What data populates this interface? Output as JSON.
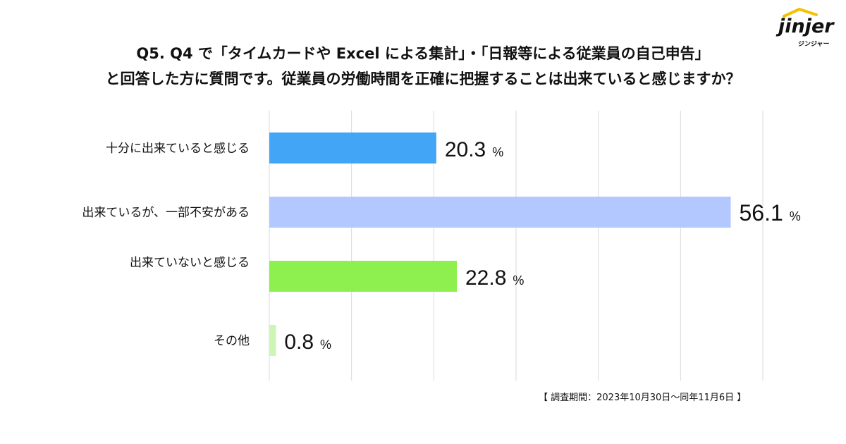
{
  "title": {
    "line1": "Q5. Q4 で「タイムカードや Excel による集計」・「日報等による従業員の自己申告」",
    "line2": "と回答した方に質問です。従業員の労働時間を正確に把握することは出来ていると感じますか？"
  },
  "logo": {
    "word": "jinjer",
    "sub": "ジンジャー"
  },
  "footnote": "【 調査期間：2023年10月30日〜同年11月6日 】",
  "chart_data": {
    "type": "bar",
    "orientation": "horizontal",
    "categories": [
      "十分に出来ていると感じる",
      "出来ているが、一部不安がある",
      "出来ていないと感じる",
      "その他"
    ],
    "values": [
      20.3,
      56.1,
      22.8,
      0.8
    ],
    "value_labels": [
      "20.3",
      "56.1",
      "22.8",
      "0.8"
    ],
    "unit": "%",
    "xlim": [
      0,
      60
    ],
    "grid": true,
    "colors": [
      "#42a5f5",
      "#b3c8ff",
      "#8df04e",
      "#cdf5b3"
    ]
  }
}
